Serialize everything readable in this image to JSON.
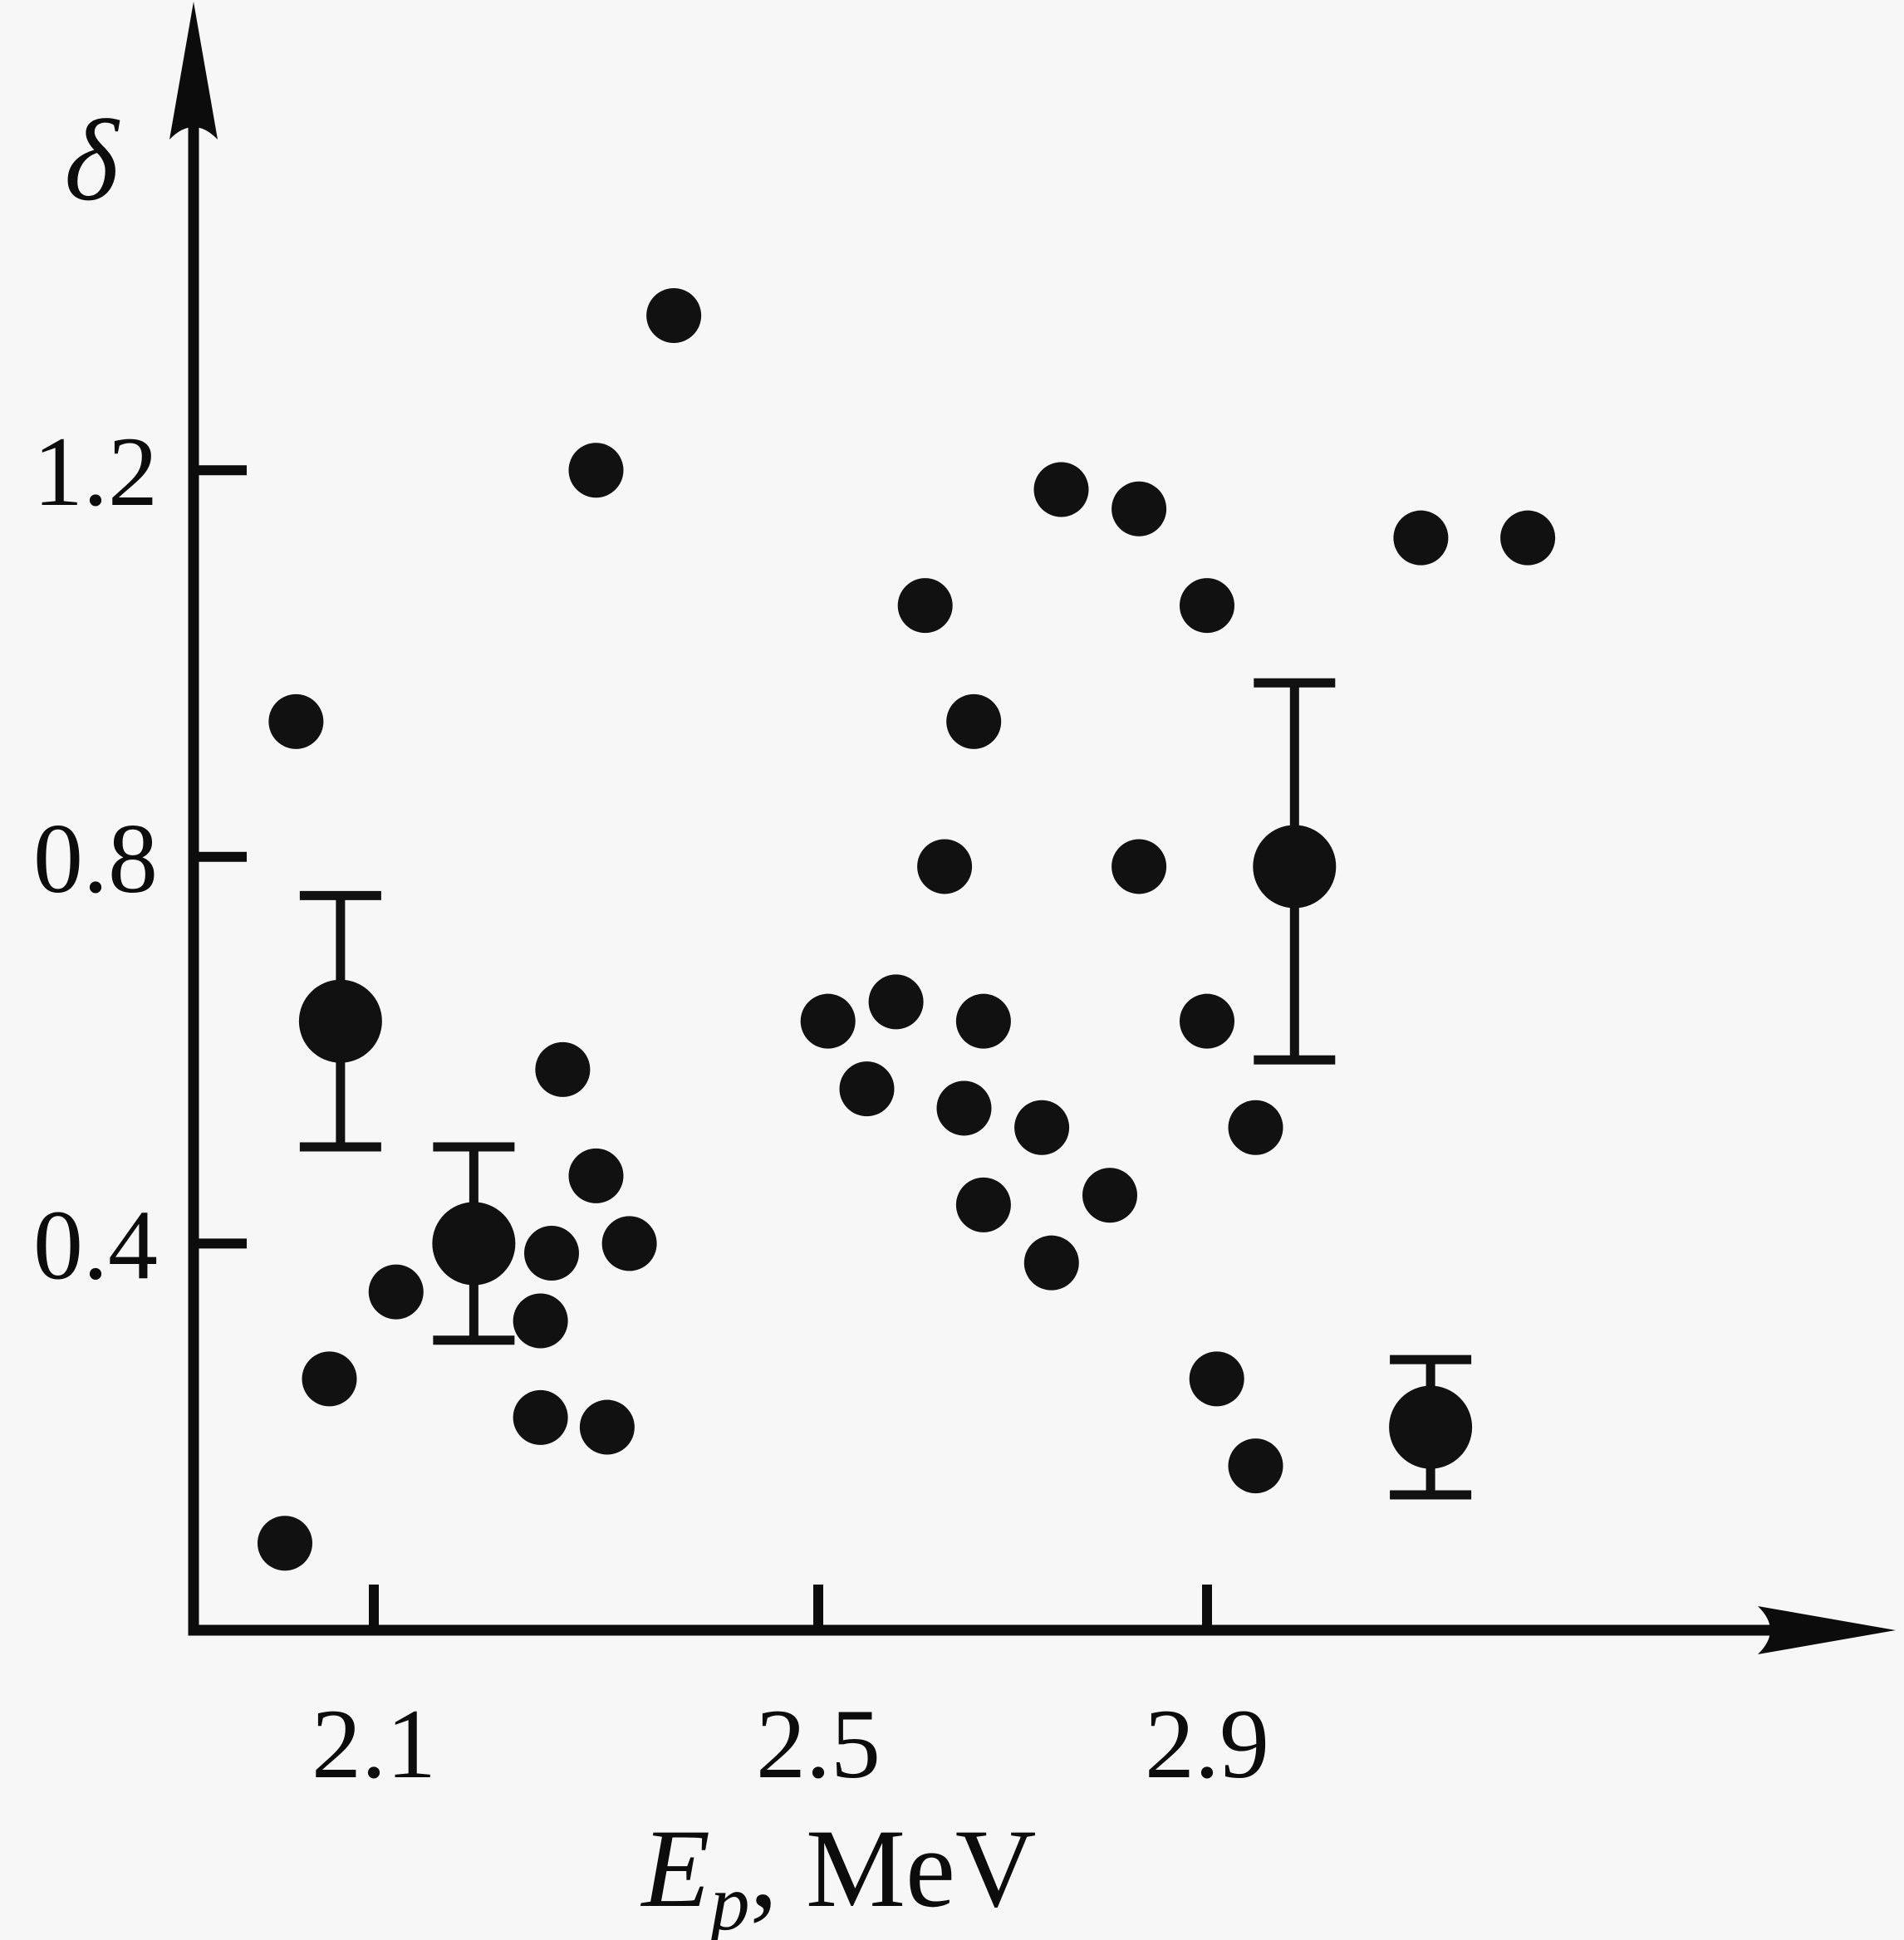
{
  "figure": {
    "background_color": "#f7f7f7",
    "marker_color": "#111111",
    "axis_color": "#0c0c0c"
  },
  "chart_data": {
    "type": "scatter",
    "title": "",
    "xlabel": "E_p, MeV",
    "xlabel_parts": {
      "variable": "E",
      "subscript": "p",
      "rest": ", MeV"
    },
    "ylabel": "δ",
    "xticks": [
      2.1,
      2.5,
      2.9
    ],
    "xtick_labels": [
      "2.1",
      "2.5",
      "2.9"
    ],
    "yticks": [
      1.2,
      0.8,
      0.4
    ],
    "ytick_labels": [
      "1.2",
      "0.8",
      "0.4"
    ],
    "xlim": [
      1.94,
      3.3
    ],
    "ylim": [
      0,
      1.55
    ],
    "grid": false,
    "legend": "none",
    "marker": "filled-circle",
    "points": [
      {
        "E": 2.02,
        "delta": 0.09,
        "size": "small"
      },
      {
        "E": 2.03,
        "delta": 0.94,
        "size": "small"
      },
      {
        "E": 2.06,
        "delta": 0.26,
        "size": "small"
      },
      {
        "E": 2.07,
        "delta": 0.63,
        "size": "large",
        "err_plus": 0.13,
        "err_minus": 0.13
      },
      {
        "E": 2.12,
        "delta": 0.35,
        "size": "small"
      },
      {
        "E": 2.19,
        "delta": 0.4,
        "size": "large",
        "err_plus": 0.1,
        "err_minus": 0.1
      },
      {
        "E": 2.25,
        "delta": 0.22,
        "size": "small"
      },
      {
        "E": 2.25,
        "delta": 0.32,
        "size": "small"
      },
      {
        "E": 2.26,
        "delta": 0.39,
        "size": "small"
      },
      {
        "E": 2.27,
        "delta": 0.58,
        "size": "small"
      },
      {
        "E": 2.3,
        "delta": 1.2,
        "size": "small"
      },
      {
        "E": 2.3,
        "delta": 0.47,
        "size": "small"
      },
      {
        "E": 2.31,
        "delta": 0.21,
        "size": "small"
      },
      {
        "E": 2.33,
        "delta": 0.4,
        "size": "small"
      },
      {
        "E": 2.37,
        "delta": 1.36,
        "size": "small"
      },
      {
        "E": 2.51,
        "delta": 0.63,
        "size": "small"
      },
      {
        "E": 2.55,
        "delta": 0.56,
        "size": "small"
      },
      {
        "E": 2.58,
        "delta": 0.65,
        "size": "small"
      },
      {
        "E": 2.61,
        "delta": 1.06,
        "size": "small"
      },
      {
        "E": 2.63,
        "delta": 0.79,
        "size": "small"
      },
      {
        "E": 2.65,
        "delta": 0.54,
        "size": "small"
      },
      {
        "E": 2.66,
        "delta": 0.94,
        "size": "small"
      },
      {
        "E": 2.67,
        "delta": 0.63,
        "size": "small"
      },
      {
        "E": 2.67,
        "delta": 0.44,
        "size": "small"
      },
      {
        "E": 2.73,
        "delta": 0.52,
        "size": "small"
      },
      {
        "E": 2.74,
        "delta": 0.38,
        "size": "small"
      },
      {
        "E": 2.75,
        "delta": 1.18,
        "size": "small"
      },
      {
        "E": 2.8,
        "delta": 0.45,
        "size": "small"
      },
      {
        "E": 2.83,
        "delta": 1.16,
        "size": "small"
      },
      {
        "E": 2.83,
        "delta": 0.79,
        "size": "small"
      },
      {
        "E": 2.9,
        "delta": 1.06,
        "size": "small"
      },
      {
        "E": 2.9,
        "delta": 0.63,
        "size": "small"
      },
      {
        "E": 2.91,
        "delta": 0.26,
        "size": "small"
      },
      {
        "E": 2.95,
        "delta": 0.52,
        "size": "small"
      },
      {
        "E": 2.95,
        "delta": 0.17,
        "size": "small"
      },
      {
        "E": 2.99,
        "delta": 0.79,
        "size": "large",
        "err_plus": 0.19,
        "err_minus": 0.2
      },
      {
        "E": 3.12,
        "delta": 1.13,
        "size": "small"
      },
      {
        "E": 3.13,
        "delta": 0.21,
        "size": "large",
        "err_plus": 0.07,
        "err_minus": 0.07
      },
      {
        "E": 3.23,
        "delta": 1.13,
        "size": "small"
      }
    ]
  }
}
